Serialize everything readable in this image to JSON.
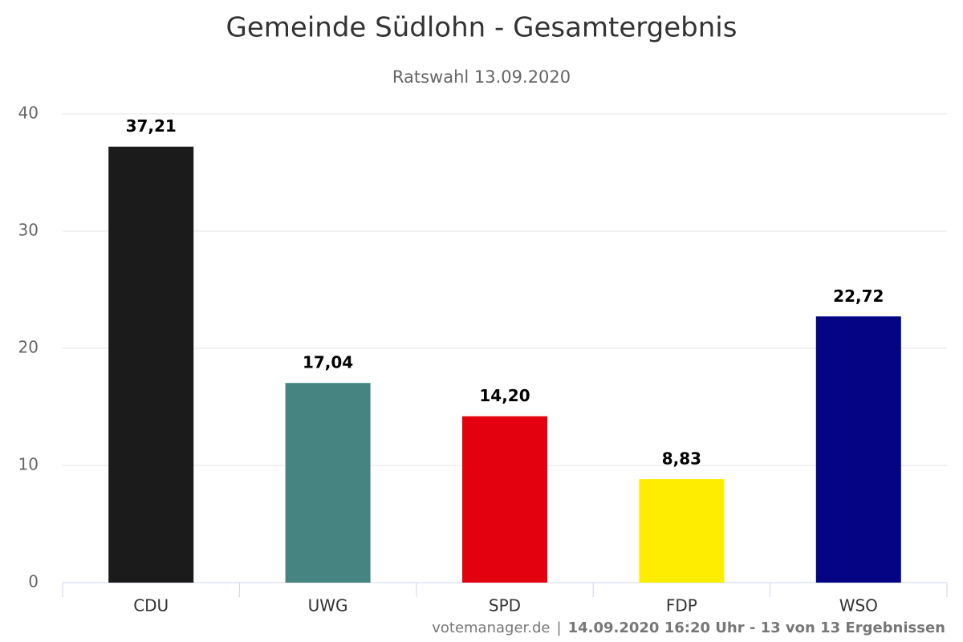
{
  "chart_data": {
    "type": "bar",
    "title": "Gemeinde Südlohn - Gesamtergebnis",
    "subtitle": "Ratswahl 13.09.2020",
    "categories": [
      "CDU",
      "UWG",
      "SPD",
      "FDP",
      "WSO"
    ],
    "values": [
      37.21,
      17.04,
      14.2,
      8.83,
      22.72
    ],
    "value_labels": [
      "37,21",
      "17,04",
      "14,20",
      "8,83",
      "22,72"
    ],
    "colors": [
      "#1b1b1b",
      "#468481",
      "#e3000f",
      "#ffed00",
      "#040484"
    ],
    "ylim": [
      0,
      40
    ],
    "yticks": [
      0,
      10,
      20,
      30,
      40
    ],
    "grid": true,
    "credits": {
      "source": "votemanager.de",
      "separator": "|",
      "info": "14.09.2020 16:20 Uhr - 13 von 13 Ergebnissen"
    }
  }
}
